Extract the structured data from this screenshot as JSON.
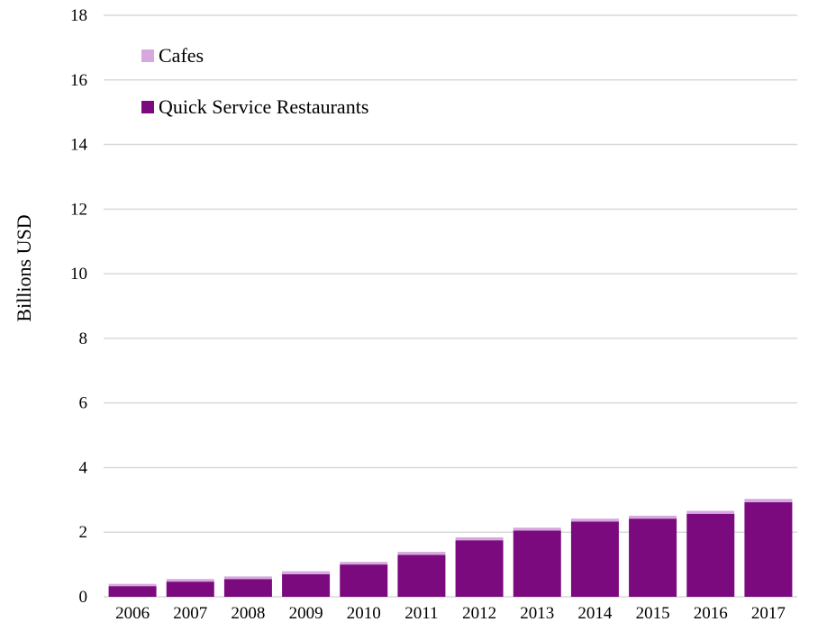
{
  "chart_data": {
    "type": "bar",
    "stacked": true,
    "title": "",
    "xlabel": "",
    "ylabel": "Billions USD",
    "ylim": [
      0,
      18
    ],
    "yticks": [
      0,
      2,
      4,
      6,
      8,
      10,
      12,
      14,
      16,
      18
    ],
    "grid": true,
    "legend_position": "top-left",
    "categories": [
      "2006",
      "2007",
      "2008",
      "2009",
      "2010",
      "2011",
      "2012",
      "2013",
      "2014",
      "2015",
      "2016",
      "2017"
    ],
    "series": [
      {
        "name": "Quick Service Restaurants",
        "color": "#7b0a7f",
        "values": [
          0.33,
          0.47,
          0.55,
          0.7,
          1.0,
          1.3,
          1.75,
          2.05,
          2.33,
          2.42,
          2.57,
          2.93
        ]
      },
      {
        "name": "Cafes",
        "color": "#d5a9dd",
        "values": [
          0.07,
          0.08,
          0.08,
          0.09,
          0.08,
          0.09,
          0.09,
          0.09,
          0.09,
          0.09,
          0.09,
          0.1
        ]
      }
    ],
    "legend_order": [
      "Cafes",
      "Quick Service Restaurants"
    ]
  }
}
